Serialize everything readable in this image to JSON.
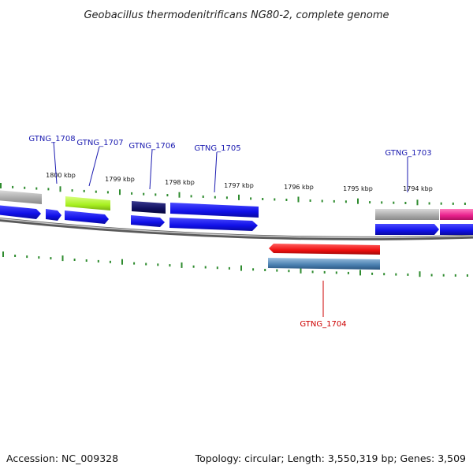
{
  "title": "Geobacillus thermodenitrificans NG80-2, complete genome",
  "footer": {
    "accession": "Accession: NC_009328",
    "summary": "Topology: circular; Length: 3,550,319 bp; Genes: 3,509"
  },
  "kbp_labels": [
    "1800 kbp",
    "1799 kbp",
    "1798 kbp",
    "1797 kbp",
    "1796 kbp",
    "1795 kbp",
    "1794 kbp"
  ],
  "gene_labels": [
    {
      "id": "GTNG_1708",
      "color": "#1a1ab0"
    },
    {
      "id": "GTNG_1707",
      "color": "#1a1ab0"
    },
    {
      "id": "GTNG_1706",
      "color": "#1a1ab0"
    },
    {
      "id": "GTNG_1705",
      "color": "#1a1ab0"
    },
    {
      "id": "GTNG_1703",
      "color": "#1a1ab0"
    },
    {
      "id": "GTNG_1704",
      "color": "#cc0000"
    }
  ],
  "colors": {
    "backbone": "#808080",
    "tick": "#2e8b2e",
    "cds_blue": "#1010e8",
    "grey_gene": "#a8a8a8",
    "lime_gene": "#a8f020",
    "navy_gene": "#101060",
    "magenta_gene": "#e8208c",
    "red_gene": "#ee1010",
    "steel_gene": "#4a7fb0"
  }
}
